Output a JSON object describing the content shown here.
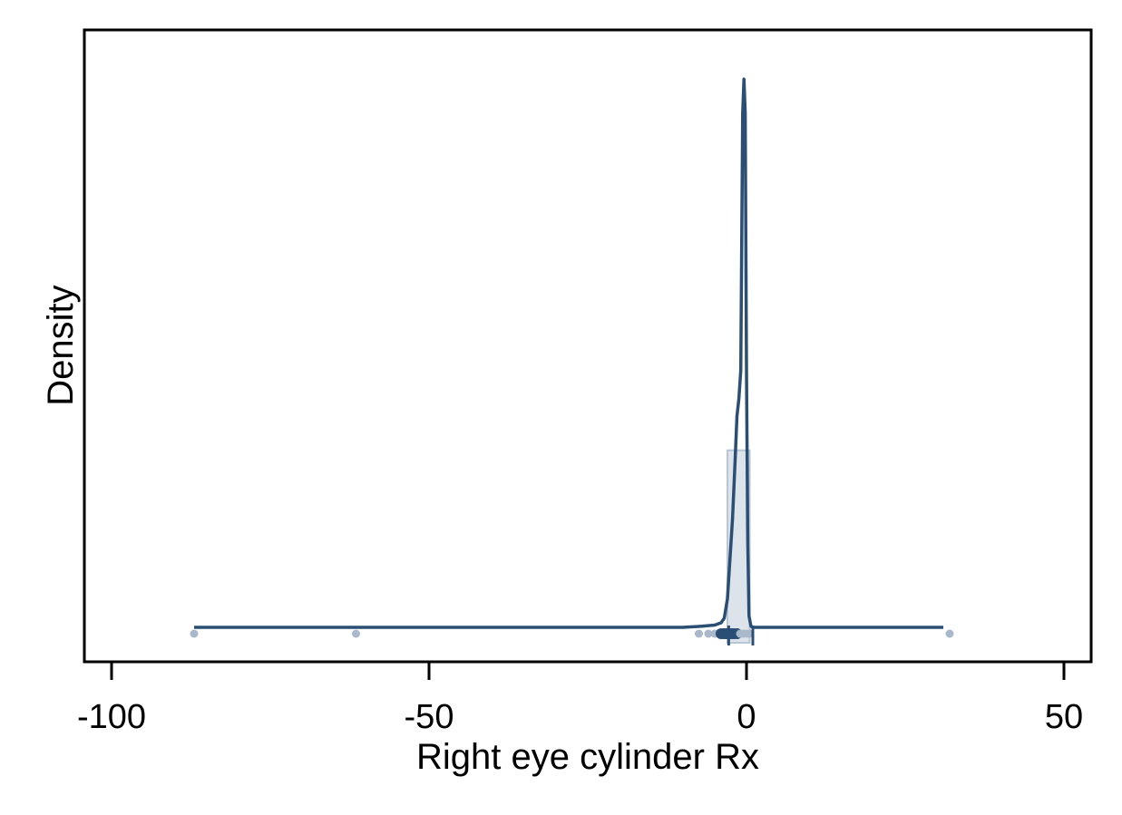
{
  "chart_data": {
    "type": "area",
    "xlabel": "Right eye cylinder Rx",
    "ylabel": "Density",
    "xlim": [
      -104.2,
      54.0
    ],
    "ylim": [
      0,
      1.0
    ],
    "x_ticks": [
      -100,
      -50,
      0,
      50
    ],
    "x_tick_labels": [
      "-100",
      "-50",
      "0",
      "50"
    ],
    "y_ticks_shown": false,
    "grid": false,
    "legend": "none",
    "histogram": {
      "bins": [
        {
          "x0": -3.0,
          "x1": 0.5,
          "density": 0.31
        }
      ]
    },
    "density_curve": {
      "x": [
        -87.0,
        -62.0,
        -10.0,
        -7.0,
        -6.0,
        -5.0,
        -4.0,
        -3.5,
        -3.0,
        -2.6,
        -2.2,
        -1.8,
        -1.5,
        -1.2,
        -0.9,
        -0.6,
        -0.4,
        -0.2,
        0.0,
        0.2,
        0.4,
        0.7,
        1.0,
        1.5,
        5.0,
        31.0
      ],
      "y": [
        0.0,
        0.0,
        0.0,
        0.002,
        0.003,
        0.004,
        0.008,
        0.016,
        0.05,
        0.12,
        0.19,
        0.29,
        0.37,
        0.4,
        0.45,
        0.9,
        0.96,
        0.9,
        0.45,
        0.15,
        0.02,
        0.002,
        0.0,
        0.0,
        0.0,
        0.0
      ]
    },
    "rug_points_x": [
      -87.0,
      -61.5,
      -7.5,
      -6.0,
      -5.0,
      -4.5,
      -4.0,
      -3.6,
      -3.2,
      -3.0,
      -2.8,
      -2.5,
      -2.2,
      -2.0,
      -1.5,
      -1.0,
      -0.5,
      0.0,
      0.5,
      32.0
    ],
    "colors": {
      "line": "#2b4f74",
      "fill": "#dde3ea",
      "fill_stroke": "#b8c6d6",
      "rug": "#a9b9cb",
      "rug_dense": "#2b4f74",
      "axis": "#000000"
    }
  }
}
